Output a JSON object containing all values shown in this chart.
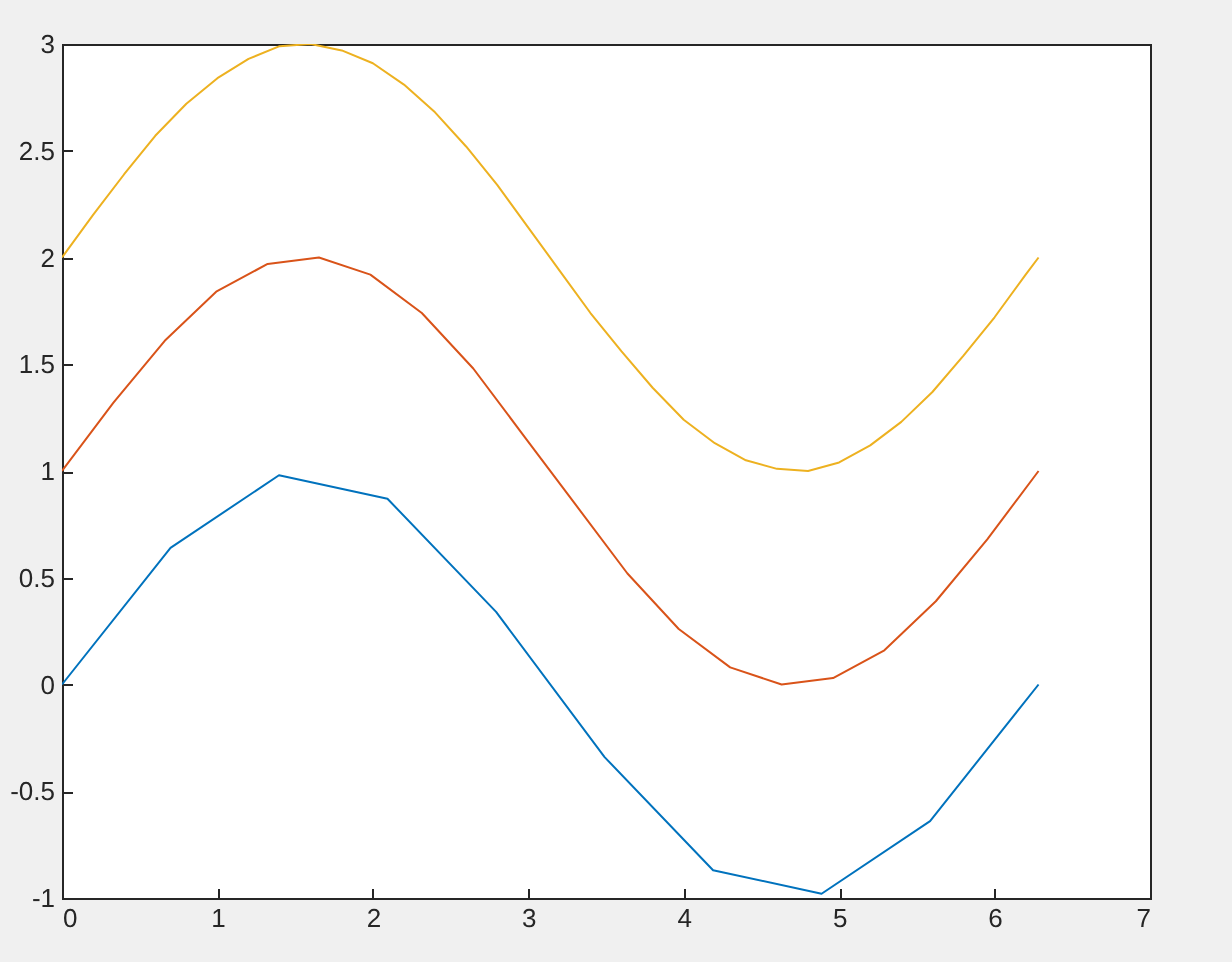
{
  "chart_data": {
    "type": "line",
    "xlim": [
      0,
      7
    ],
    "xticks": [
      0,
      1,
      2,
      3,
      4,
      5,
      6,
      7
    ],
    "ylim": [
      -1,
      3
    ],
    "yticks": [
      -1,
      -0.5,
      0,
      0.5,
      1,
      1.5,
      2,
      2.5,
      3
    ],
    "series": [
      {
        "color": "#0072bd",
        "x": [
          0,
          0.698,
          1.396,
          2.094,
          2.793,
          3.491,
          4.189,
          4.887,
          5.585,
          6.283
        ],
        "values": [
          0,
          0.64,
          0.98,
          0.87,
          0.34,
          -0.34,
          -0.87,
          -0.98,
          -0.64,
          0
        ]
      },
      {
        "color": "#d95319",
        "x": [
          0,
          0.331,
          0.661,
          0.992,
          1.323,
          1.653,
          1.984,
          2.315,
          2.646,
          2.976,
          3.307,
          3.638,
          3.968,
          4.299,
          4.63,
          4.961,
          5.291,
          5.622,
          5.953,
          6.283
        ],
        "values": [
          1,
          1.32,
          1.61,
          1.84,
          1.97,
          2,
          1.92,
          1.74,
          1.48,
          1.16,
          0.84,
          0.52,
          0.26,
          0.08,
          0,
          0.03,
          0.16,
          0.39,
          0.68,
          1
        ]
      },
      {
        "color": "#edb120",
        "x": [
          0,
          0.2,
          0.4,
          0.6,
          0.8,
          1,
          1.2,
          1.4,
          1.6,
          1.8,
          2,
          2.2,
          2.4,
          2.6,
          2.8,
          3,
          3.2,
          3.4,
          3.6,
          3.8,
          4,
          4.2,
          4.4,
          4.6,
          4.8,
          5,
          5.2,
          5.4,
          5.6,
          5.8,
          6,
          6.2,
          6.283
        ],
        "values": [
          2,
          2.2,
          2.39,
          2.57,
          2.72,
          2.84,
          2.93,
          2.99,
          3,
          2.97,
          2.91,
          2.81,
          2.68,
          2.52,
          2.34,
          2.14,
          1.94,
          1.74,
          1.56,
          1.39,
          1.24,
          1.13,
          1.05,
          1.01,
          1,
          1.04,
          1.12,
          1.23,
          1.37,
          1.54,
          1.72,
          1.92,
          2
        ]
      }
    ]
  }
}
